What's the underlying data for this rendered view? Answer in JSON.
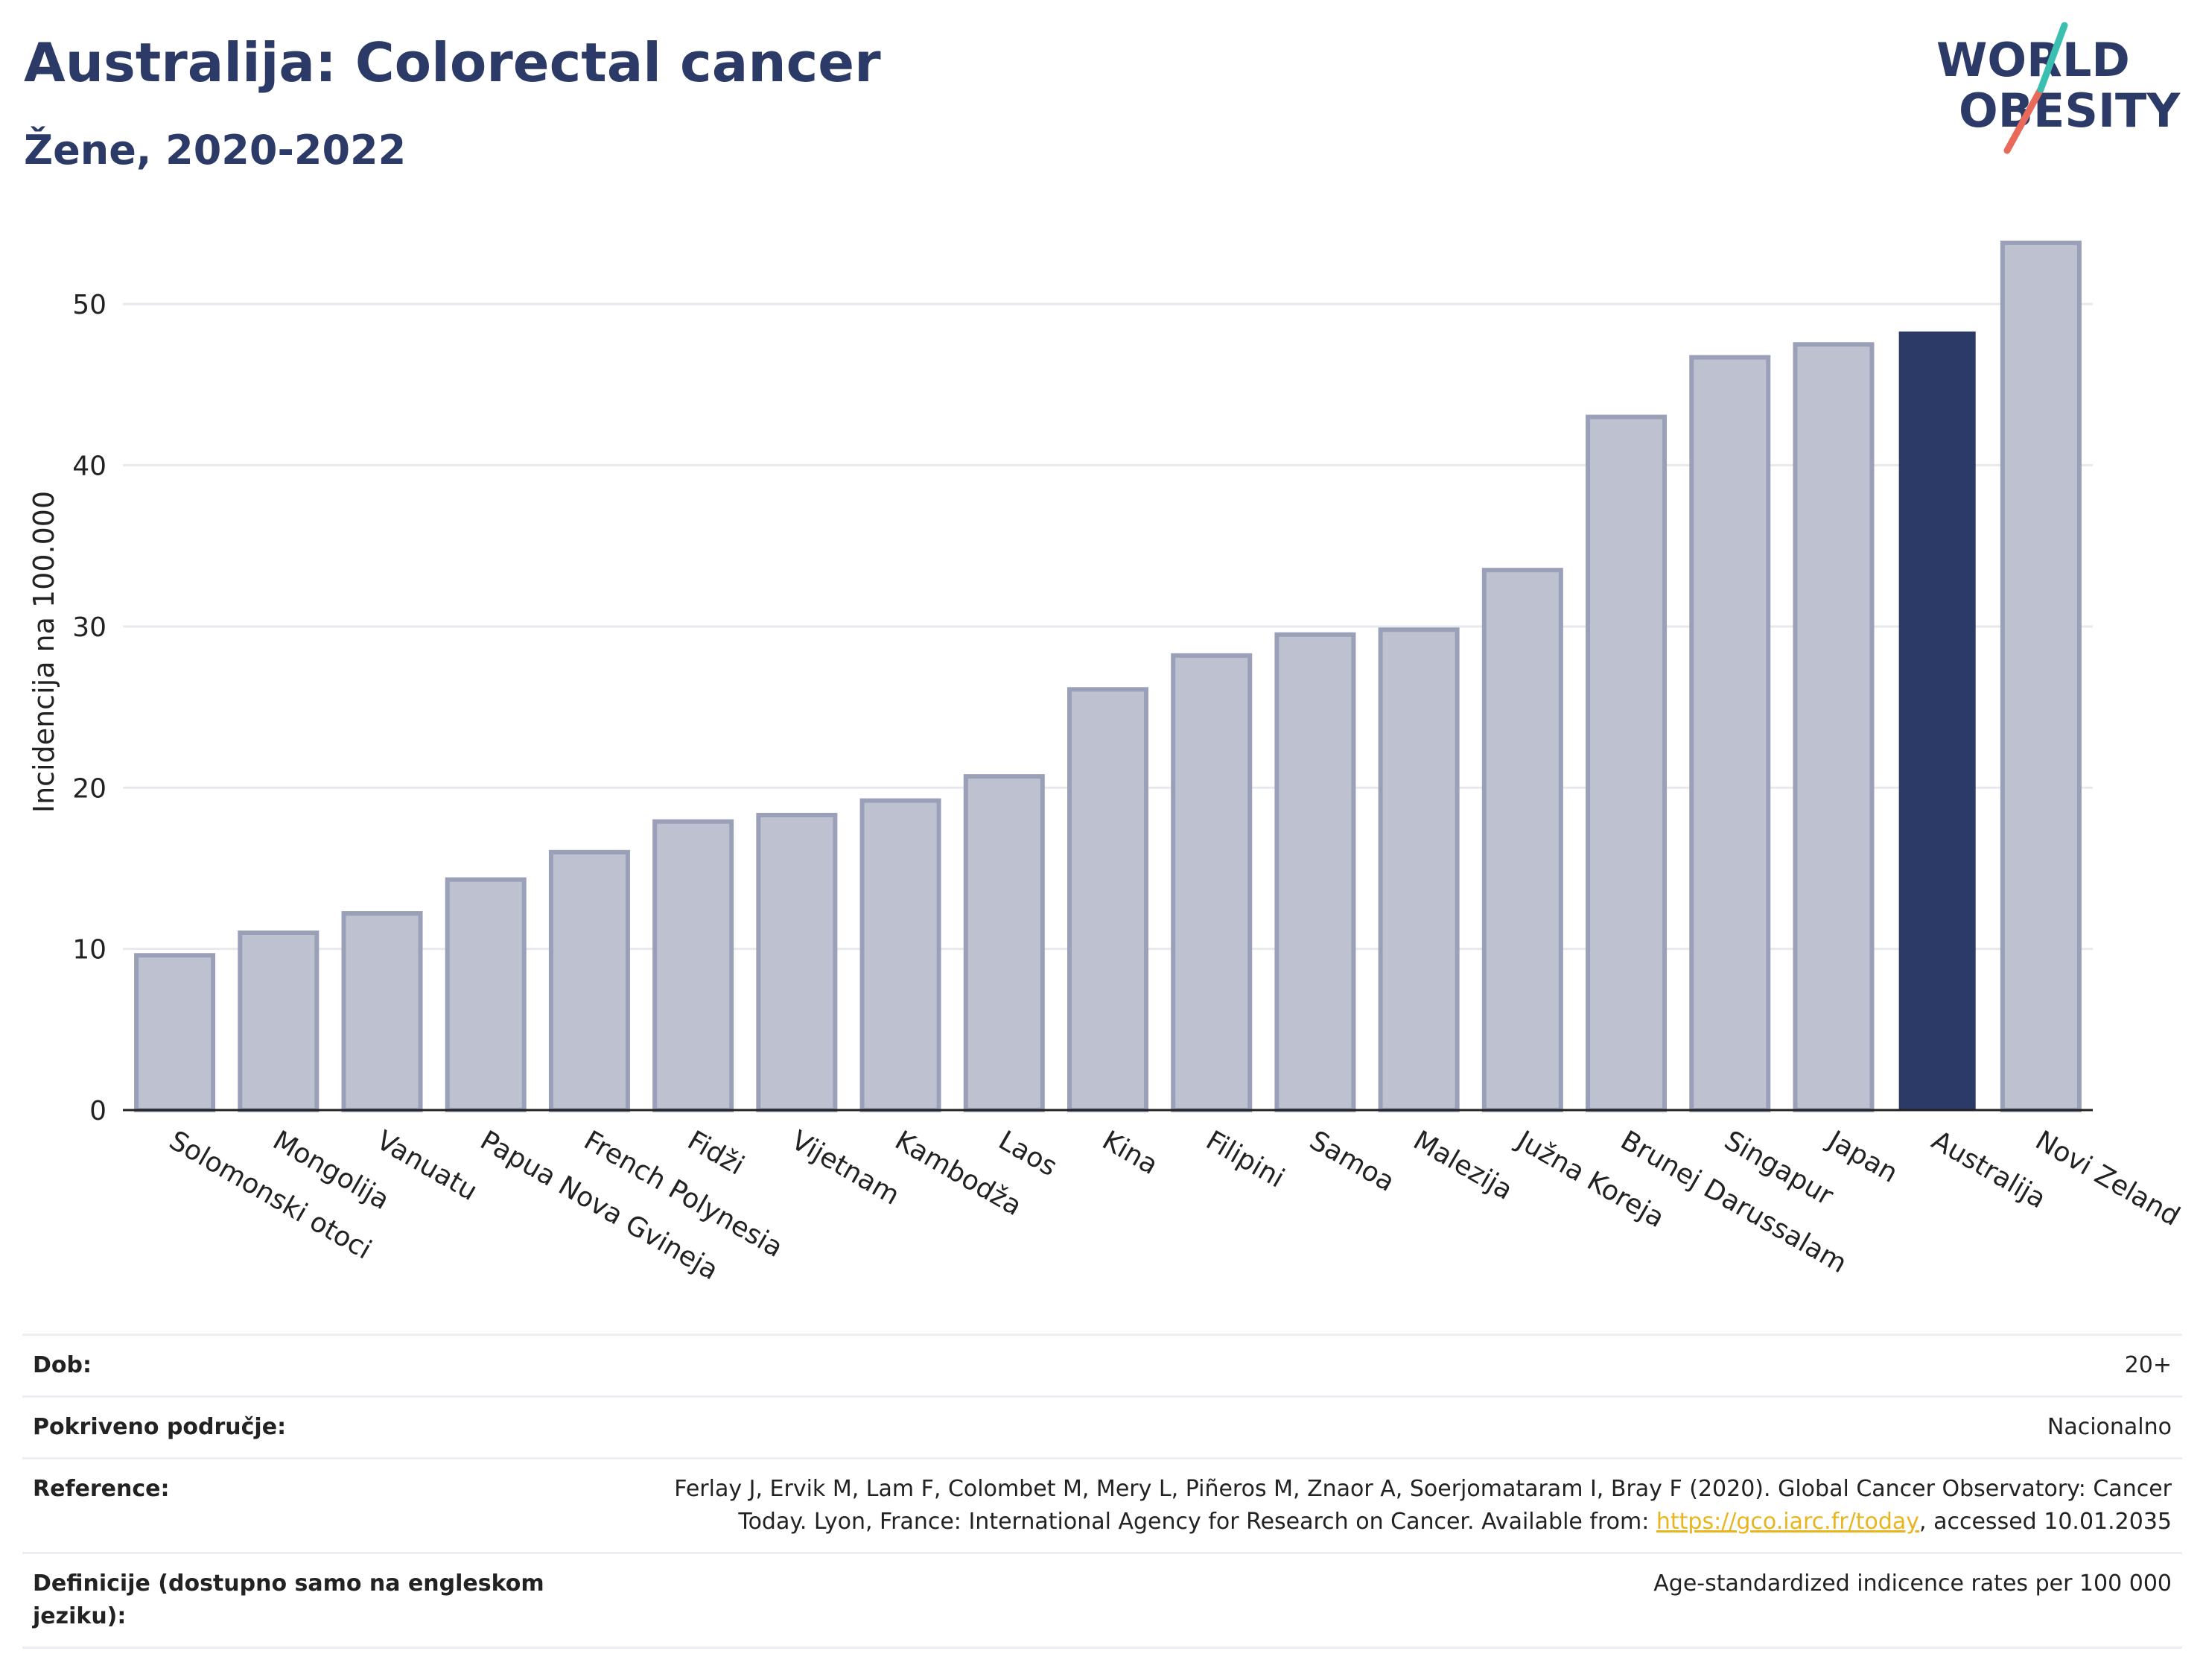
{
  "header": {
    "title": "Australija: Colorectal cancer",
    "subtitle": "Žene, 2020-2022"
  },
  "logo": {
    "line1": "WORLD",
    "line2": "OBESITY",
    "accent_teal": "#3bbfb0",
    "accent_red": "#e86a5b",
    "text_color": "#2b3a67"
  },
  "chart_data": {
    "type": "bar",
    "title": "Australija: Colorectal cancer",
    "subtitle": "Žene, 2020-2022",
    "xlabel": "",
    "ylabel": "Incidencija na 100.000",
    "ylim": [
      0,
      55
    ],
    "yticks": [
      0,
      10,
      20,
      30,
      40,
      50
    ],
    "grid": true,
    "highlight": "Australija",
    "colors": {
      "bar": "#bec2d0",
      "bar_edge": "#9aa0b8",
      "highlight": "#2b3a67",
      "grid": "#e8e9ee"
    },
    "categories": [
      "Solomonski otoci",
      "Mongolija",
      "Vanuatu",
      "Papua Nova Gvineja",
      "French Polynesia",
      "Fidži",
      "Vijetnam",
      "Kambodža",
      "Laos",
      "Kina",
      "Filipini",
      "Samoa",
      "Malezija",
      "Južna Koreja",
      "Brunej Darussalam",
      "Singapur",
      "Japan",
      "Australija",
      "Novi Zeland"
    ],
    "values": [
      9.6,
      11.0,
      12.2,
      14.3,
      16.0,
      17.9,
      18.3,
      19.2,
      20.7,
      26.1,
      28.2,
      29.5,
      29.8,
      33.5,
      43.0,
      46.7,
      47.5,
      48.3,
      53.8
    ]
  },
  "meta": {
    "rows": [
      {
        "label": "Dob:",
        "value": "20+"
      },
      {
        "label": "Pokriveno područje:",
        "value": "Nacionalno"
      },
      {
        "label": "Reference:",
        "value_pre": "Ferlay J, Ervik M, Lam F, Colombet M, Mery L, Piñeros M, Znaor A, Soerjomataram I, Bray F (2020). Global Cancer Observatory: Cancer Today. Lyon, France: International Agency for Research on Cancer. Available from: ",
        "link": "https://gco.iarc.fr/today",
        "value_post": ", accessed 10.01.2035"
      },
      {
        "label": "Definicije (dostupno samo na engleskom jeziku):",
        "value": "Age-standardized indicence rates per 100 000"
      }
    ]
  }
}
